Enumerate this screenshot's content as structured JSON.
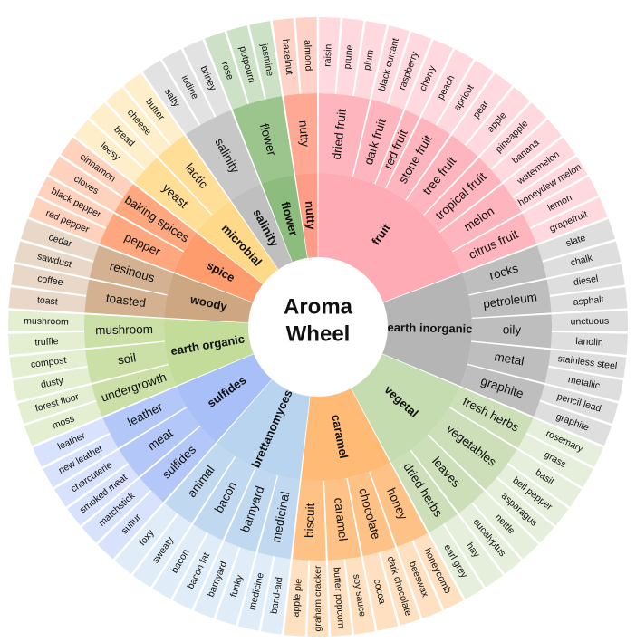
{
  "chart_data": {
    "type": "sunburst",
    "title": "Aroma Wheel",
    "title_lines": [
      "Aroma",
      "Wheel"
    ],
    "categories": [
      {
        "name": "fruit",
        "color": "#FFABB5",
        "children": [
          {
            "name": "dried fruit",
            "aromas": [
              "raisin",
              "prune",
              "plum"
            ]
          },
          {
            "name": "dark fruit",
            "aromas": [
              "black currant",
              "raspberry"
            ]
          },
          {
            "name": "red fruit",
            "aromas": [
              "cherry"
            ]
          },
          {
            "name": "stone fruit",
            "aromas": [
              "peach",
              "apricot"
            ]
          },
          {
            "name": "tree fruit",
            "aromas": [
              "pear",
              "apple"
            ]
          },
          {
            "name": "tropical fruit",
            "aromas": [
              "pineapple",
              "banana"
            ]
          },
          {
            "name": "melon",
            "aromas": [
              "watermelon",
              "honeydew melon"
            ]
          },
          {
            "name": "citrus fruit",
            "aromas": [
              "lemon",
              "grapefruit"
            ]
          }
        ]
      },
      {
        "name": "earth inorganic",
        "color": "#B5B5B5",
        "children": [
          {
            "name": "rocks",
            "aromas": [
              "slate",
              "chalk"
            ]
          },
          {
            "name": "petroleum",
            "aromas": [
              "diesel",
              "asphalt"
            ]
          },
          {
            "name": "oily",
            "aromas": [
              "unctuous",
              "lanolin"
            ]
          },
          {
            "name": "metal",
            "aromas": [
              "stainless steel",
              "metallic"
            ]
          },
          {
            "name": "graphite",
            "aromas": [
              "pencil lead",
              "graphite"
            ]
          }
        ]
      },
      {
        "name": "vegetal",
        "color": "#C5DBB0",
        "children": [
          {
            "name": "fresh herbs",
            "aromas": [
              "rosemary",
              "grass"
            ]
          },
          {
            "name": "vegetables",
            "aromas": [
              "basil",
              "bell pepper",
              "asparagus"
            ]
          },
          {
            "name": "leaves",
            "aromas": [
              "nettle",
              "eucalyptus"
            ]
          },
          {
            "name": "dried herbs",
            "aromas": [
              "hay",
              "earl grey"
            ]
          }
        ]
      },
      {
        "name": "caramel",
        "color": "#FFBA75",
        "children": [
          {
            "name": "honey",
            "aromas": [
              "honeycomb",
              "beeswax"
            ]
          },
          {
            "name": "chocolate",
            "aromas": [
              "dark chocolate",
              "cocoa"
            ]
          },
          {
            "name": "caramel",
            "aromas": [
              "soy sauce",
              "butter popcorn"
            ]
          },
          {
            "name": "biscuit",
            "aromas": [
              "graham cracker",
              "apple pie"
            ]
          }
        ]
      },
      {
        "name": "brettanomyces",
        "color": "#B9D4EE",
        "children": [
          {
            "name": "medicinal",
            "aromas": [
              "band-aid",
              "medicine"
            ]
          },
          {
            "name": "barnyard",
            "aromas": [
              "funky",
              "barnyard"
            ]
          },
          {
            "name": "bacon",
            "aromas": [
              "bacon fat",
              "bacon"
            ]
          },
          {
            "name": "animal",
            "aromas": [
              "sweaty",
              "foxy"
            ]
          }
        ]
      },
      {
        "name": "sulfides",
        "color": "#A9BFF8",
        "children": [
          {
            "name": "sulfides",
            "aromas": [
              "sulfur",
              "matchstick"
            ]
          },
          {
            "name": "meat",
            "aromas": [
              "smoked meat",
              "charcuterie"
            ]
          },
          {
            "name": "leather",
            "aromas": [
              "new leather",
              "leather"
            ]
          }
        ]
      },
      {
        "name": "earth organic",
        "color": "#C3DC9A",
        "children": [
          {
            "name": "undergrowth",
            "aromas": [
              "moss",
              "forest floor"
            ]
          },
          {
            "name": "soil",
            "aromas": [
              "dusty",
              "compost"
            ]
          },
          {
            "name": "mushroom",
            "aromas": [
              "truffle",
              "mushroom"
            ]
          }
        ]
      },
      {
        "name": "woody",
        "color": "#CDA682",
        "children": [
          {
            "name": "toasted",
            "aromas": [
              "toast",
              "coffee"
            ]
          },
          {
            "name": "resinous",
            "aromas": [
              "sawdust",
              "cedar"
            ]
          }
        ]
      },
      {
        "name": "spice",
        "color": "#FF9C6E",
        "children": [
          {
            "name": "pepper",
            "aromas": [
              "red pepper",
              "black pepper"
            ]
          },
          {
            "name": "baking spices",
            "aromas": [
              "cloves",
              "cinnamon"
            ]
          }
        ]
      },
      {
        "name": "microbial",
        "color": "#FFD98A",
        "children": [
          {
            "name": "yeast",
            "aromas": [
              "leesy",
              "bread"
            ]
          },
          {
            "name": "lactic",
            "aromas": [
              "cheese",
              "butter"
            ]
          }
        ]
      },
      {
        "name": "salinity",
        "color": "#BFBFBF",
        "children": [
          {
            "name": "salinity",
            "aromas": [
              "salty",
              "iodine",
              "briney"
            ]
          }
        ]
      },
      {
        "name": "flower",
        "color": "#8DBD7E",
        "children": [
          {
            "name": "flower",
            "aromas": [
              "rose",
              "potpourri",
              "jasmine"
            ]
          }
        ]
      },
      {
        "name": "nutty",
        "color": "#FF9C85",
        "children": [
          {
            "name": "nutty",
            "aromas": [
              "hazelnut",
              "almond"
            ]
          }
        ]
      }
    ]
  }
}
